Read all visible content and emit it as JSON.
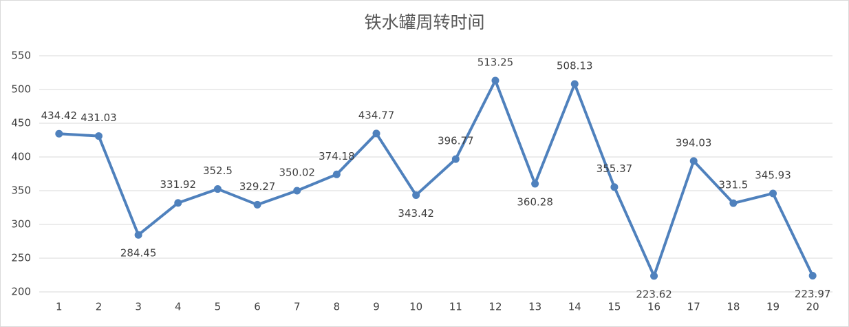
{
  "chart_data": {
    "type": "line",
    "title": "铁水罐周转时间",
    "categories": [
      1,
      2,
      3,
      4,
      5,
      6,
      7,
      8,
      9,
      10,
      11,
      12,
      13,
      14,
      15,
      16,
      17,
      18,
      19,
      20
    ],
    "series": [
      {
        "name": "铁水罐周转时间",
        "color": "#4f81bd",
        "values": [
          434.42,
          431.03,
          284.45,
          331.92,
          352.5,
          329.27,
          350.02,
          374.18,
          434.77,
          343.42,
          396.77,
          513.25,
          360.28,
          508.13,
          355.37,
          223.62,
          394.03,
          331.5,
          345.93,
          223.97
        ]
      }
    ],
    "ylim": [
      200,
      550
    ],
    "yticks": [
      200,
      250,
      300,
      350,
      400,
      450,
      500,
      550
    ],
    "grid": true
  }
}
